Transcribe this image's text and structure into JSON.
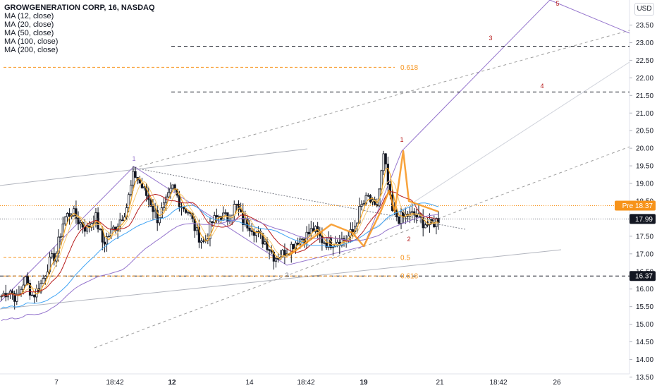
{
  "legend": {
    "title": "GROWGENERATION CORP, 16, NASDAQ",
    "indicators": [
      "MA (12, close)",
      "MA (20, close)",
      "MA (50, close)",
      "MA (100, close)",
      "MA (200, close)"
    ]
  },
  "currency": "USD",
  "colors": {
    "candle": "#131722",
    "ma12": "#f5a623",
    "ma20": "#f7c873",
    "ma50": "#b71c1c",
    "ma100": "#42a5f5",
    "ma200": "#9575cd",
    "fib": "#f7931a",
    "pivot": "#9575cd",
    "trend": "#b2b5be",
    "level": "#131722",
    "pre_badge": "#f7931a",
    "last_badge": "#131722"
  },
  "chart_data": {
    "type": "candlestick",
    "symbol": "GROWGENERATION CORP",
    "interval": "16",
    "exchange": "NASDAQ",
    "ylim": [
      13.3,
      24.1
    ],
    "y_ticks": [
      "13.50",
      "14.00",
      "14.50",
      "15.00",
      "15.50",
      "16.00",
      "16.50",
      "17.00",
      "17.50",
      "18.00",
      "18.50",
      "19.00",
      "19.50",
      "20.00",
      "20.50",
      "21.00",
      "21.50",
      "22.00",
      "22.50",
      "23.00",
      "23.50"
    ],
    "x_ticks": [
      "7",
      "18:42",
      "12",
      "14",
      "18:42",
      "19",
      "21",
      "18:42",
      "26"
    ],
    "bold_x_ticks": [
      "12",
      "19"
    ],
    "price_labels": [
      {
        "label": "Pre",
        "value": "18.37",
        "kind": "pre"
      },
      {
        "label": "",
        "value": "17.99",
        "kind": "last"
      },
      {
        "label": "",
        "value": "16.37",
        "kind": "level"
      }
    ],
    "close_path": [
      15.8,
      16.0,
      15.7,
      16.3,
      15.8,
      16.1,
      16.7,
      17.0,
      18.0,
      18.2,
      17.9,
      17.7,
      18.1,
      17.3,
      17.6,
      17.9,
      18.3,
      19.3,
      18.9,
      18.5,
      18.0,
      18.4,
      18.9,
      18.4,
      18.2,
      17.6,
      17.3,
      17.9,
      18.1,
      18.0,
      18.4,
      17.9,
      17.8,
      17.5,
      17.3,
      16.9,
      17.0,
      17.2,
      17.4,
      17.5,
      17.7,
      17.4,
      17.3,
      17.4,
      17.4,
      17.6,
      18.3,
      18.6,
      18.2,
      19.8,
      18.2,
      18.0,
      18.1,
      18.1,
      17.9,
      17.8,
      18.0
    ],
    "moving_averages": [
      {
        "name": "MA (12, close)",
        "period": 12
      },
      {
        "name": "MA (20, close)",
        "period": 20
      },
      {
        "name": "MA (50, close)",
        "period": 50
      },
      {
        "name": "MA (100, close)",
        "period": 100
      },
      {
        "name": "MA (200, close)",
        "period": 200
      }
    ],
    "fib_levels": [
      {
        "label": "0.618",
        "value": 22.3
      },
      {
        "label": "0.5",
        "value": 16.9
      },
      {
        "label": "0.618",
        "value": 16.37
      }
    ],
    "horizontal_levels": [
      22.9,
      21.6,
      16.37
    ],
    "wave_labels": [
      "1",
      "2",
      "1",
      "2",
      "3",
      "4",
      "5"
    ],
    "grid": false,
    "legend_position": "top-left"
  }
}
